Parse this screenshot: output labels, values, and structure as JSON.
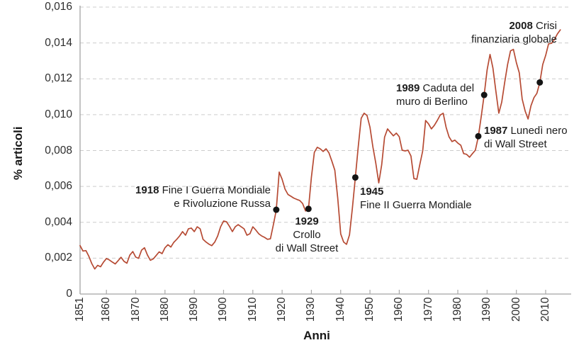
{
  "chart_data": {
    "type": "line",
    "xlabel": "Anni",
    "ylabel": "% articoli",
    "grid": "horizontal-dashed",
    "legend": "none",
    "line_color": "#b64a33",
    "dot_color": "#141414",
    "ylim": [
      0,
      0.016
    ],
    "x_start": 1851,
    "x_end": 2015,
    "x_tick_values": [
      1851,
      1860,
      1870,
      1880,
      1890,
      1900,
      1910,
      1920,
      1930,
      1940,
      1950,
      1960,
      1970,
      1980,
      1990,
      2000,
      2010
    ],
    "x_tick_labels": [
      "1851",
      "1860",
      "1870",
      "1880",
      "1890",
      "1900",
      "1910",
      "1920",
      "1930",
      "1940",
      "1950",
      "1960",
      "1970",
      "1980",
      "1990",
      "2000",
      "2010"
    ],
    "y_tick_values": [
      0,
      0.002,
      0.004,
      0.006,
      0.008,
      0.01,
      0.012,
      0.014,
      0.016
    ],
    "y_tick_labels": [
      "0",
      "0,002",
      "0,004",
      "0,006",
      "0,008",
      "0,010",
      "0,012",
      "0,014",
      "0,016"
    ],
    "series": [
      {
        "name": "% articoli",
        "x_step": 1,
        "y": [
          0.0027,
          0.0024,
          0.00242,
          0.0021,
          0.0017,
          0.0014,
          0.0016,
          0.00152,
          0.00178,
          0.00198,
          0.0019,
          0.00178,
          0.00168,
          0.00186,
          0.00205,
          0.00182,
          0.00172,
          0.00217,
          0.00237,
          0.00206,
          0.00199,
          0.00245,
          0.00258,
          0.00218,
          0.00188,
          0.00196,
          0.00215,
          0.00235,
          0.00225,
          0.00258,
          0.00275,
          0.00262,
          0.00288,
          0.00305,
          0.00324,
          0.00348,
          0.00328,
          0.00364,
          0.00368,
          0.00348,
          0.00375,
          0.00364,
          0.00305,
          0.0029,
          0.00278,
          0.0027,
          0.0029,
          0.00324,
          0.00375,
          0.00407,
          0.00403,
          0.00378,
          0.00348,
          0.00375,
          0.00387,
          0.00375,
          0.00364,
          0.00328,
          0.00336,
          0.00375,
          0.00357,
          0.00336,
          0.00324,
          0.00316,
          0.00305,
          0.00308,
          0.00385,
          0.00467,
          0.0068,
          0.0064,
          0.00585,
          0.00555,
          0.00545,
          0.00535,
          0.00528,
          0.00522,
          0.00505,
          0.00463,
          0.00475,
          0.0065,
          0.0079,
          0.00818,
          0.0081,
          0.00795,
          0.0081,
          0.00787,
          0.0074,
          0.0069,
          0.00535,
          0.00335,
          0.0029,
          0.00277,
          0.0033,
          0.0048,
          0.00648,
          0.0082,
          0.0098,
          0.01008,
          0.00996,
          0.0093,
          0.0082,
          0.0073,
          0.0062,
          0.0072,
          0.00875,
          0.00921,
          0.00901,
          0.00882,
          0.00897,
          0.00877,
          0.00802,
          0.00798,
          0.00802,
          0.0077,
          0.00644,
          0.0064,
          0.0072,
          0.00798,
          0.00968,
          0.00949,
          0.00921,
          0.00941,
          0.00968,
          0.00998,
          0.01008,
          0.0093,
          0.00877,
          0.0085,
          0.00858,
          0.00842,
          0.0083,
          0.00783,
          0.00779,
          0.00763,
          0.00783,
          0.00802,
          0.00878,
          0.0099,
          0.01109,
          0.0125,
          0.01336,
          0.0126,
          0.0113,
          0.01008,
          0.0107,
          0.0118,
          0.0128,
          0.01356,
          0.01364,
          0.0129,
          0.01233,
          0.01087,
          0.0102,
          0.00976,
          0.0105,
          0.01095,
          0.01119,
          0.01178,
          0.0128,
          0.0133,
          0.01395,
          0.01398,
          0.0142,
          0.0145,
          0.01473
        ]
      }
    ],
    "events": [
      {
        "year": 1918,
        "value": 0.0047,
        "label": "Fine I Guerra Mondiale e Rivoluzione Russa"
      },
      {
        "year": 1929,
        "value": 0.00475,
        "label": "Crollo di Wall Street"
      },
      {
        "year": 1945,
        "value": 0.0065,
        "label": "Fine II Guerra Mondiale"
      },
      {
        "year": 1987,
        "value": 0.0088,
        "label": "Lunedì nero di Wall Street"
      },
      {
        "year": 1989,
        "value": 0.0111,
        "label": "Caduta del muro di Berlino"
      },
      {
        "year": 2008,
        "value": 0.0118,
        "label": "Crisi finanziaria globale"
      }
    ]
  },
  "annotations": [
    {
      "year": "1918",
      "line1": "Fine I Guerra Mondiale",
      "line2": "e Rivoluzione Russa"
    },
    {
      "year": "1929",
      "line1": "Crollo",
      "line2": "di Wall Street"
    },
    {
      "year": "1945",
      "line1": "Fine II Guerra Mondiale"
    },
    {
      "year": "1987",
      "line1": "Lunedì nero",
      "line2": "di Wall Street"
    },
    {
      "year": "1989",
      "line1": "Caduta del",
      "line2": "muro di Berlino"
    },
    {
      "year": "2008",
      "line1": "Crisi",
      "line2": "finanziaria globale"
    }
  ]
}
